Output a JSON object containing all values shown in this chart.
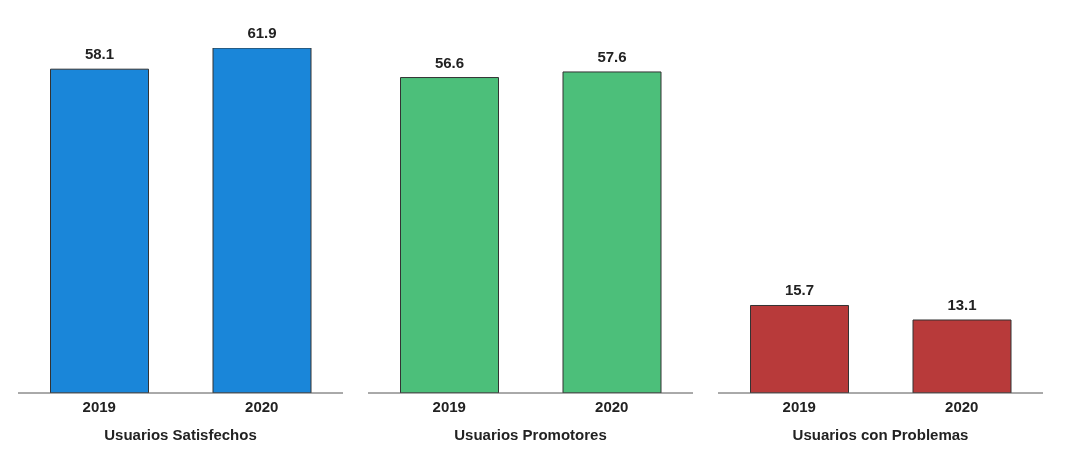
{
  "chart_data": [
    {
      "type": "bar",
      "categories": [
        "2019",
        "2020"
      ],
      "values": [
        58.1,
        61.9
      ],
      "color": "#1a86d9",
      "data_labels": true,
      "xlabel": "Usuarios Satisfechos"
    },
    {
      "type": "bar",
      "categories": [
        "2019",
        "2020"
      ],
      "values": [
        56.6,
        57.6
      ],
      "color": "#4cbf7a",
      "data_labels": true,
      "xlabel": "Usuarios Promotores"
    },
    {
      "type": "bar",
      "categories": [
        "2019",
        "2020"
      ],
      "values": [
        15.7,
        13.1
      ],
      "color": "#b83a3a",
      "data_labels": true,
      "xlabel": "Usuarios con Problemas"
    }
  ]
}
